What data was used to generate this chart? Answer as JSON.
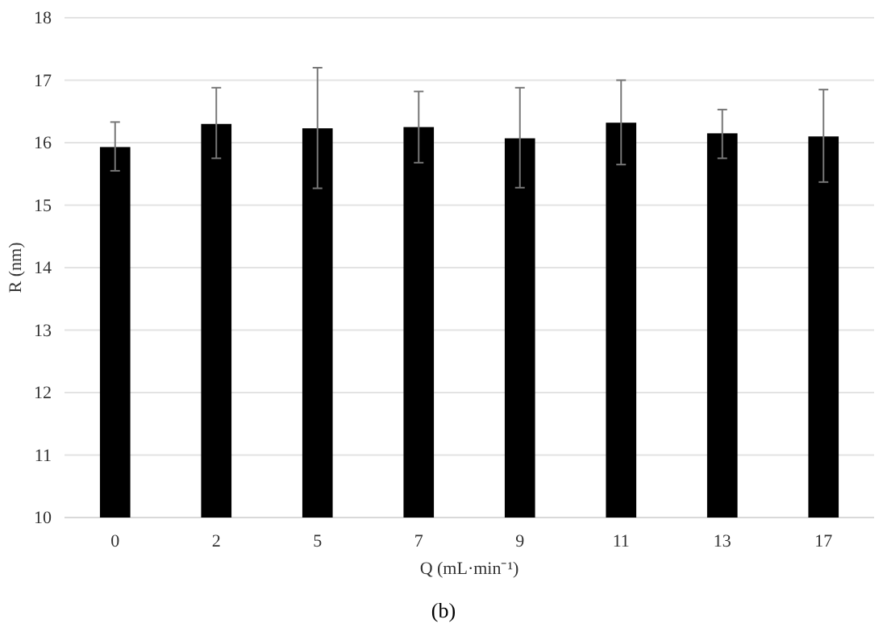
{
  "chart_data": {
    "type": "bar",
    "xlabel": "Q (mL·min⁻¹)",
    "ylabel": "R (nm)",
    "annotations": [
      "(b)"
    ],
    "categories": [
      "0",
      "2",
      "5",
      "7",
      "9",
      "11",
      "13",
      "17"
    ],
    "values": [
      15.93,
      16.3,
      16.23,
      16.25,
      16.07,
      16.32,
      16.15,
      16.1
    ],
    "errors": [
      [
        15.55,
        16.33
      ],
      [
        15.75,
        16.88
      ],
      [
        15.27,
        17.2
      ],
      [
        15.68,
        16.82
      ],
      [
        15.28,
        16.88
      ],
      [
        15.65,
        17.0
      ],
      [
        15.75,
        16.53
      ],
      [
        15.37,
        16.85
      ]
    ],
    "color": "#000000",
    "ylim": [
      10,
      18
    ],
    "yticks": [
      10,
      11,
      12,
      13,
      14,
      15,
      16,
      17,
      18
    ],
    "grid": "y"
  }
}
